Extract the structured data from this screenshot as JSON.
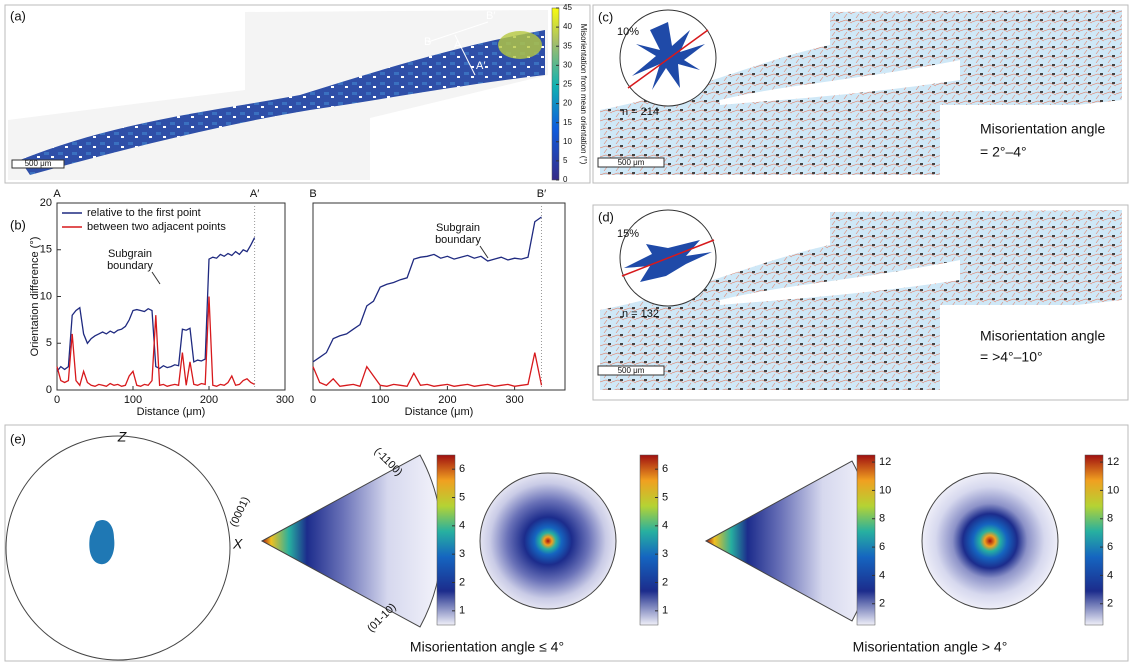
{
  "panel_a": {
    "label": "(a)",
    "profile_labels": [
      "B",
      "A",
      "B′",
      "A′"
    ],
    "scale_bar": "500 μm",
    "colorbar": {
      "label": "Misorientation from mean orientation (°)",
      "lim": [
        0,
        45
      ],
      "ticks": [
        0,
        5,
        10,
        15,
        20,
        25,
        30,
        35,
        40,
        45
      ]
    }
  },
  "panel_b": {
    "label": "(b)"
  },
  "chart_data": [
    {
      "type": "line",
      "ylabel": "Orientation difference (°)",
      "xlabel": "Distance (μm)",
      "start_label": "A",
      "end_label": "A′",
      "annotation": [
        "Subgrain",
        "boundary"
      ],
      "x": [
        0,
        5,
        10,
        15,
        20,
        25,
        30,
        35,
        40,
        45,
        50,
        55,
        60,
        65,
        70,
        75,
        80,
        85,
        90,
        95,
        100,
        105,
        110,
        115,
        120,
        125,
        130,
        135,
        140,
        145,
        150,
        155,
        160,
        165,
        170,
        175,
        180,
        185,
        190,
        195,
        200,
        205,
        210,
        215,
        220,
        225,
        230,
        235,
        240,
        245,
        250,
        255,
        260
      ],
      "series": [
        {
          "name": "relative to the first point",
          "color": "#1f2a80",
          "values": [
            2,
            2.5,
            2.2,
            2.5,
            8,
            8.5,
            8.8,
            6,
            5,
            5.5,
            5.8,
            6,
            6.2,
            6,
            6.3,
            6.1,
            6.4,
            6.5,
            6.8,
            7.5,
            8.5,
            8.6,
            8.5,
            8.4,
            8.7,
            8.5,
            2.5,
            2.3,
            2.6,
            2.4,
            2.5,
            2.7,
            2.6,
            6.5,
            6.4,
            6.6,
            3,
            3.2,
            3.1,
            3.3,
            14,
            14.2,
            14.1,
            14.5,
            14.3,
            14.6,
            14.4,
            14.8,
            14.5,
            15,
            14.8,
            15.5,
            16.3
          ]
        },
        {
          "name": "between two adjacent points",
          "color": "#d7191c",
          "values": [
            2.5,
            1,
            0.8,
            1,
            6,
            1,
            0.5,
            2,
            0.8,
            0.5,
            0.4,
            0.6,
            0.5,
            0.4,
            0.7,
            0.5,
            0.6,
            0.4,
            0.5,
            1.5,
            2,
            0.5,
            0.4,
            0.6,
            0.5,
            1,
            8,
            0.5,
            0.6,
            0.4,
            0.5,
            0.6,
            0.5,
            4,
            0.5,
            3,
            0.6,
            0.5,
            0.7,
            0.6,
            10,
            0.5,
            0.4,
            0.6,
            0.5,
            0.8,
            1.5,
            0.5,
            0.6,
            1,
            1.2,
            0.8,
            0.6
          ]
        }
      ],
      "xlim": [
        0,
        300
      ],
      "ylim": [
        0,
        20
      ],
      "xticks": [
        0,
        100,
        200,
        300
      ],
      "yticks": [
        0,
        5,
        10,
        15,
        20
      ]
    },
    {
      "type": "line",
      "xlabel": "Distance (μm)",
      "start_label": "B",
      "end_label": "B′",
      "annotation": [
        "Subgrain",
        "boundary"
      ],
      "x": [
        0,
        10,
        20,
        30,
        40,
        50,
        60,
        70,
        80,
        90,
        100,
        110,
        120,
        130,
        140,
        150,
        160,
        170,
        180,
        190,
        200,
        210,
        220,
        230,
        240,
        250,
        260,
        270,
        280,
        290,
        300,
        310,
        320,
        330,
        340
      ],
      "series": [
        {
          "color": "#1f2a80",
          "values": [
            3,
            3.5,
            4,
            5.5,
            5.8,
            6,
            6.5,
            7,
            9,
            9.5,
            11,
            11.3,
            11.5,
            11.8,
            12,
            14,
            14.2,
            14.3,
            14.5,
            14.1,
            14.3,
            14,
            14.2,
            14.4,
            14.1,
            14.3,
            13.8,
            14,
            14.2,
            13.9,
            14.1,
            14,
            14.2,
            18,
            18.5
          ]
        },
        {
          "color": "#d7191c",
          "values": [
            2.5,
            0.8,
            0.5,
            1.2,
            0.4,
            0.5,
            0.6,
            0.4,
            2.5,
            1.5,
            0.5,
            0.4,
            0.6,
            0.5,
            0.4,
            1.8,
            0.5,
            0.6,
            0.4,
            0.5,
            0.6,
            0.4,
            0.5,
            0.6,
            0.4,
            0.5,
            0.6,
            0.4,
            0.5,
            0.6,
            0.4,
            0.5,
            0.6,
            4,
            0.5
          ]
        }
      ],
      "xlim": [
        0,
        375
      ],
      "ylim": [
        0,
        20
      ],
      "xticks": [
        0,
        100,
        200,
        300
      ]
    }
  ],
  "panel_c": {
    "label": "(c)",
    "rose_percent": "10%",
    "n": "n = 214",
    "title": "Misorientation angle",
    "range": "= 2°–4°",
    "scale_bar": "500 μm"
  },
  "panel_d": {
    "label": "(d)",
    "rose_percent": "15%",
    "n": "n = 132",
    "title": "Misorientation angle",
    "range": "= >4°–10°",
    "scale_bar": "500 μm"
  },
  "panel_e": {
    "label": "(e)",
    "z": "Z",
    "x": "X",
    "ipf_labels": [
      "(0001)",
      "(-1100)",
      "(01-10)"
    ],
    "colorbar_1": {
      "lim": [
        0.5,
        6.5
      ],
      "ticks": [
        1,
        2,
        3,
        4,
        5,
        6
      ]
    },
    "colorbar_2": {
      "lim": [
        0.5,
        12.5
      ],
      "ticks": [
        2,
        4,
        6,
        8,
        10,
        12
      ]
    },
    "caption_1": "Misorientation angle ≤ 4°",
    "caption_2": "Misorientation angle > 4°"
  }
}
